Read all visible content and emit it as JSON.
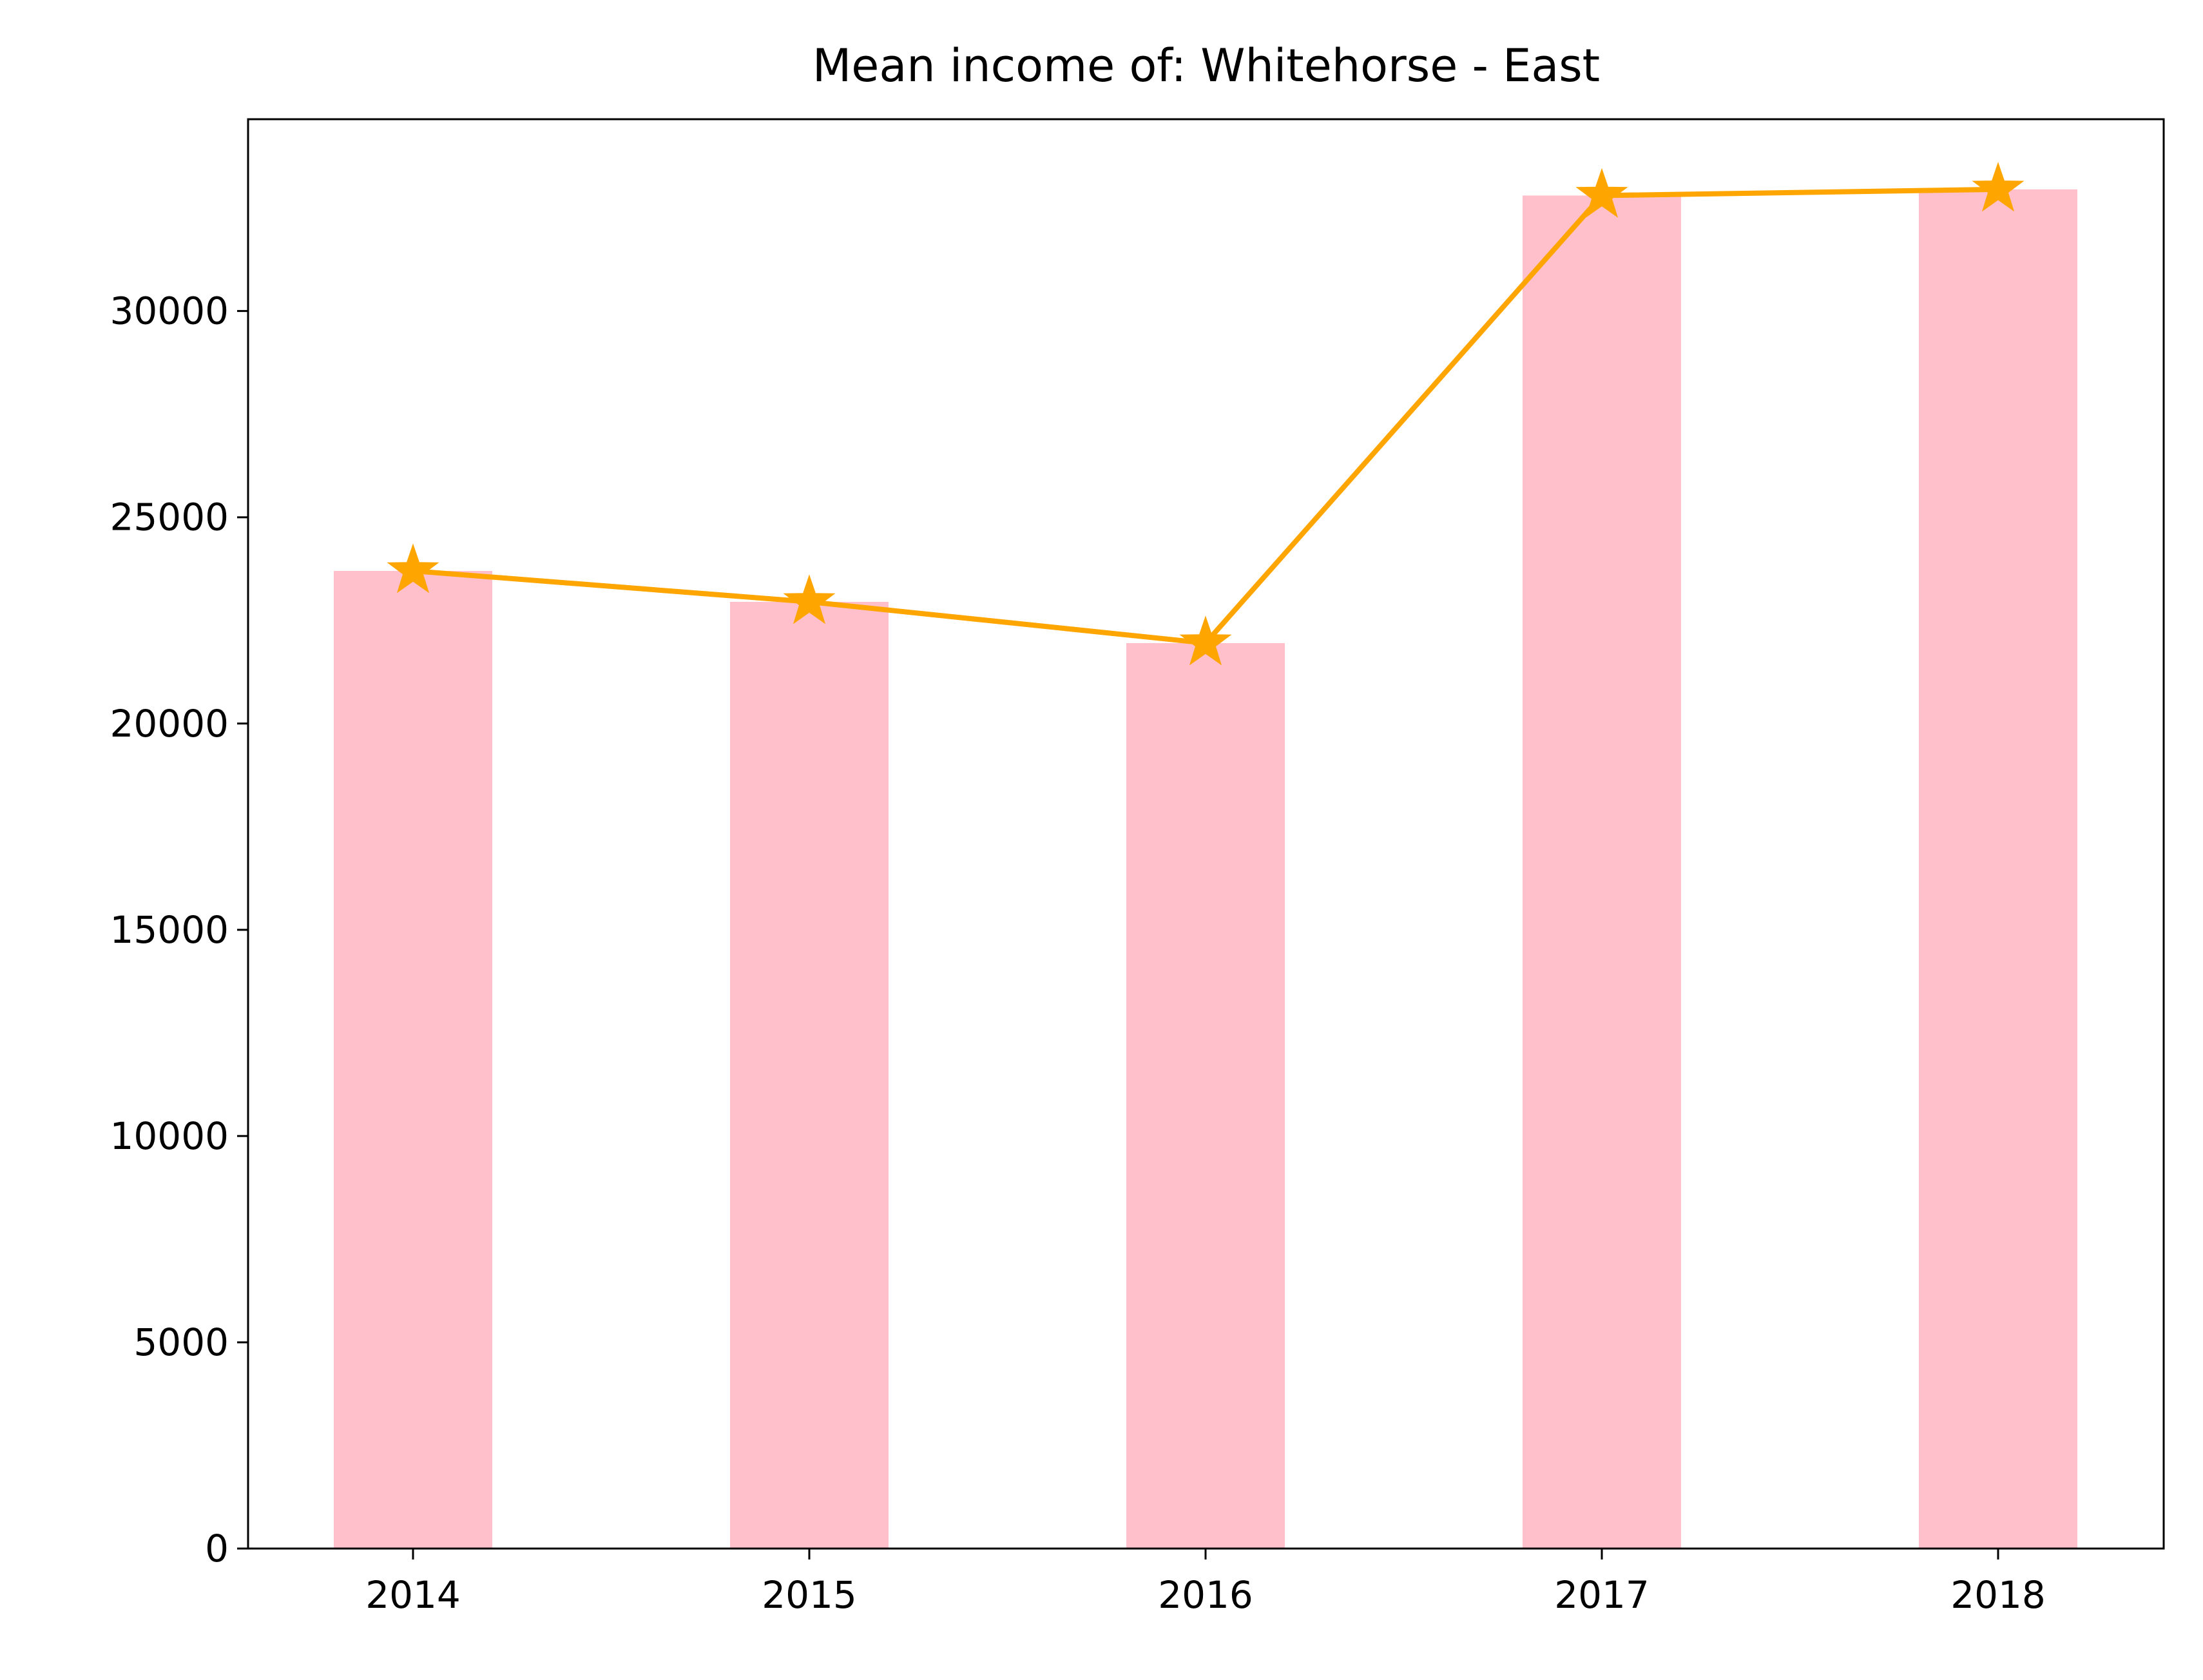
{
  "chart_data": {
    "type": "bar",
    "title": "Mean income of: Whitehorse - East",
    "xlabel": "",
    "ylabel": "",
    "categories": [
      "2014",
      "2015",
      "2016",
      "2017",
      "2018"
    ],
    "series": [
      {
        "type": "bar",
        "values": [
          23700,
          22950,
          21950,
          32800,
          32950
        ],
        "color": "#ffc0cb"
      },
      {
        "type": "line",
        "marker": "star",
        "values": [
          23700,
          22950,
          21950,
          32800,
          32950
        ],
        "color": "#ffa500"
      }
    ],
    "ylim": [
      0,
      34650
    ],
    "yticks": [
      0,
      5000,
      10000,
      15000,
      20000,
      25000,
      30000
    ],
    "ytick_labels": [
      "0",
      "5000",
      "10000",
      "15000",
      "20000",
      "25000",
      "30000"
    ],
    "grid": false,
    "legend": "none"
  }
}
